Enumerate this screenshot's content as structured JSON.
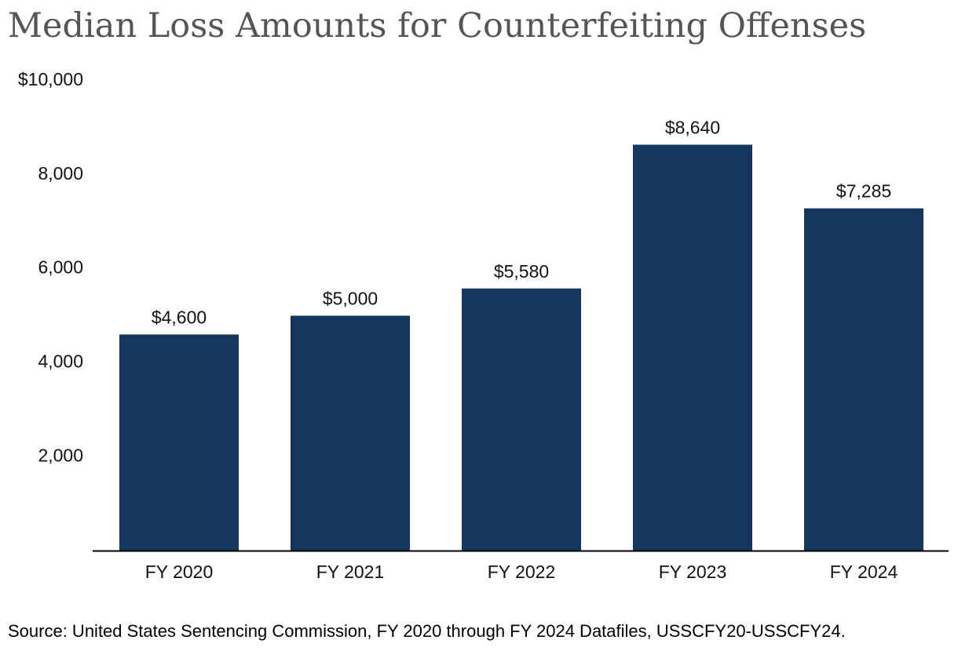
{
  "chart_data": {
    "type": "bar",
    "title": "Median Loss Amounts for Counterfeiting Offenses",
    "categories": [
      "FY 2020",
      "FY 2021",
      "FY 2022",
      "FY 2023",
      "FY 2024"
    ],
    "values": [
      4600,
      5000,
      5580,
      8640,
      7285
    ],
    "data_labels": [
      "$4,600",
      "$5,000",
      "$5,580",
      "$8,640",
      "$7,285"
    ],
    "y_ticks": [
      {
        "value": 2000,
        "label": "2,000"
      },
      {
        "value": 4000,
        "label": "4,000"
      },
      {
        "value": 6000,
        "label": "6,000"
      },
      {
        "value": 8000,
        "label": "8,000"
      },
      {
        "value": 10000,
        "label": "$10,000"
      }
    ],
    "ylim": [
      0,
      10000
    ],
    "xlabel": "",
    "ylabel": "",
    "grid": false,
    "bar_color": "#15375f",
    "source": "Source: United States Sentencing Commission, FY 2020 through FY 2024 Datafiles, USSCFY20-USSCFY24."
  }
}
